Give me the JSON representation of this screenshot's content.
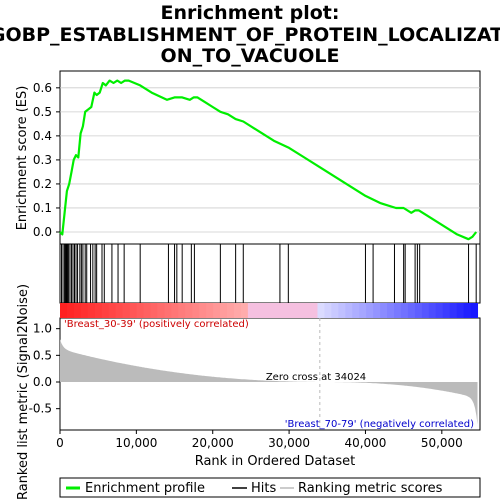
{
  "chart_data": {
    "type": "line",
    "title_lines": [
      "Enrichment plot:",
      "GOBP_ESTABLISHMENT_OF_PROTEIN_LOCALIZATI",
      "ON_TO_VACUOLE"
    ],
    "es_panel": {
      "ylabel": "Enrichment score (ES)",
      "ylim": [
        -0.05,
        0.67
      ],
      "yticks": [
        0.0,
        0.1,
        0.2,
        0.3,
        0.4,
        0.5,
        0.6
      ],
      "ytick_labels": [
        "0.0",
        "0.1",
        "0.2",
        "0.3",
        "0.4",
        "0.5",
        "0.6"
      ],
      "line_color": "#00ee00",
      "x": [
        0,
        300,
        600,
        900,
        1200,
        1500,
        1800,
        2100,
        2400,
        2700,
        3000,
        3300,
        3700,
        4100,
        4500,
        4800,
        5200,
        5600,
        6000,
        6500,
        7000,
        7500,
        8000,
        8500,
        9000,
        10500,
        12000,
        14000,
        15000,
        16000,
        17000,
        17500,
        18000,
        19000,
        20000,
        21000,
        22000,
        23000,
        24000,
        26000,
        28000,
        30000,
        32000,
        34000,
        36000,
        38000,
        40000,
        42000,
        44000,
        45000,
        46000,
        46500,
        47000,
        48000,
        50000,
        52000,
        53500,
        54000,
        54500
      ],
      "es": [
        0.0,
        -0.01,
        0.08,
        0.17,
        0.2,
        0.25,
        0.3,
        0.32,
        0.31,
        0.41,
        0.44,
        0.5,
        0.51,
        0.52,
        0.58,
        0.57,
        0.58,
        0.62,
        0.61,
        0.63,
        0.62,
        0.63,
        0.62,
        0.63,
        0.63,
        0.61,
        0.58,
        0.55,
        0.56,
        0.56,
        0.55,
        0.56,
        0.56,
        0.54,
        0.52,
        0.5,
        0.49,
        0.47,
        0.46,
        0.42,
        0.38,
        0.35,
        0.31,
        0.27,
        0.23,
        0.19,
        0.15,
        0.12,
        0.1,
        0.1,
        0.08,
        0.09,
        0.09,
        0.07,
        0.03,
        -0.01,
        -0.03,
        -0.02,
        0.0
      ]
    },
    "hits": [
      200,
      400,
      600,
      700,
      800,
      900,
      1000,
      1100,
      1300,
      1500,
      1700,
      1900,
      2100,
      2300,
      2600,
      2800,
      3000,
      3300,
      3500,
      4000,
      4300,
      4600,
      4800,
      5500,
      5800,
      6800,
      7600,
      8400,
      10500,
      14200,
      15000,
      15300,
      16000,
      17200,
      17600,
      21000,
      23000,
      24000,
      28800,
      29900,
      40000,
      41000,
      43800,
      45000,
      45200,
      46500,
      46800,
      47100,
      53500,
      54500
    ],
    "ranking_panel": {
      "ylabel": "Ranked list metric (Signal2Noise)",
      "ylim": [
        -0.9,
        1.2
      ],
      "yticks": [
        1.0,
        0.5,
        0.0,
        -0.5
      ],
      "ytick_labels": [
        "1.0",
        "0.5",
        "0.0",
        "-0.5"
      ],
      "zero_cross_label": "Zero cross at 34024",
      "zero_cross": 34024,
      "pos_label": "'Breast_30-39' (positively correlated)",
      "neg_label": "'Breast_70-79' (negatively correlated)"
    },
    "xlabel": "Rank in Ordered Dataset",
    "xlim": [
      0,
      55000
    ],
    "xticks": [
      0,
      10000,
      20000,
      30000,
      40000,
      50000
    ],
    "xtick_labels": [
      "0",
      "10,000",
      "20,000",
      "30,000",
      "40,000",
      "50,000"
    ],
    "n_genes": 54675,
    "legend": [
      {
        "label": "Enrichment profile",
        "color": "#00ee00"
      },
      {
        "label": "Hits",
        "color": "#000000"
      },
      {
        "label": "Ranking metric scores",
        "color": "#bbbbbb"
      }
    ],
    "colors": {
      "pos_label_color": "#cc0000",
      "neg_label_color": "#0000cc",
      "metric_fill": "#bbbbbb",
      "zero_cross_line": "#bbbbbb"
    }
  }
}
